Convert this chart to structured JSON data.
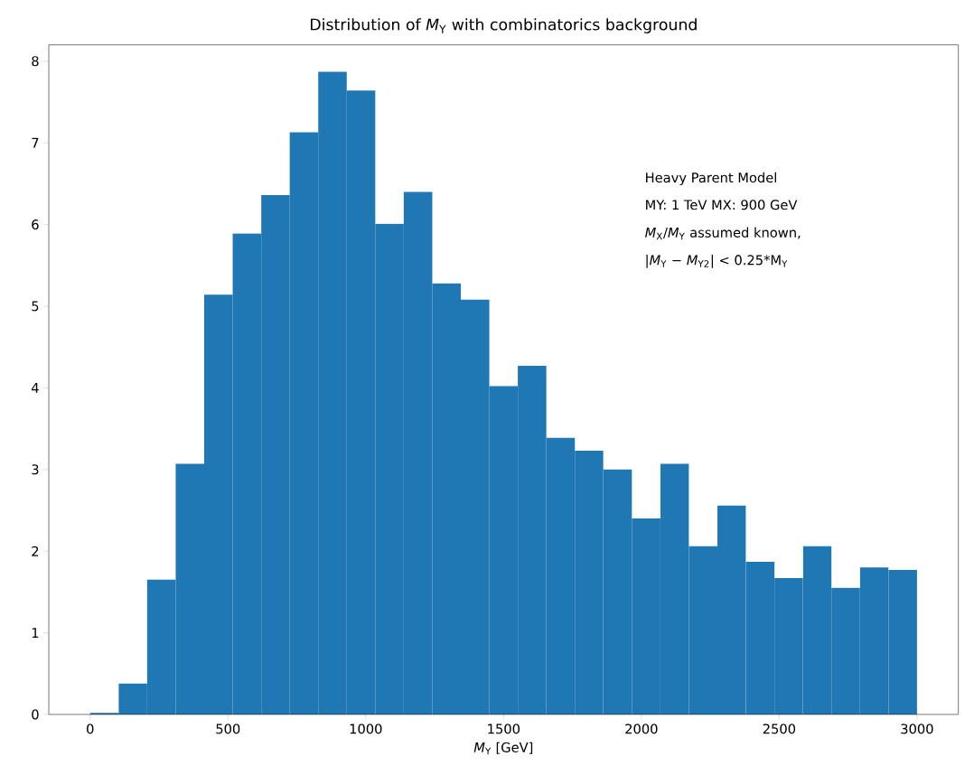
{
  "chart_data": {
    "type": "histogram",
    "title": "Distribution of *M*$_{Y}$ with combinatorics background",
    "xlabel": "*M*$_{Y}$ [GeV]",
    "bins": [
      0,
      103.4,
      206.9,
      310.3,
      413.8,
      517.2,
      620.7,
      724.1,
      827.6,
      931.0,
      1034.5,
      1137.9,
      1241.4,
      1344.8,
      1448.3,
      1551.7,
      1655.2,
      1758.6,
      1862.1,
      1965.5,
      2069.0,
      2172.4,
      2275.9,
      2379.3,
      2482.8,
      2586.2,
      2689.7,
      2793.1,
      2896.6,
      3000
    ],
    "values": [
      0.02,
      0.38,
      1.65,
      3.07,
      5.14,
      5.89,
      6.36,
      7.13,
      7.87,
      7.64,
      6.01,
      6.4,
      5.28,
      5.08,
      4.02,
      4.27,
      3.39,
      3.23,
      3.0,
      2.4,
      3.07,
      2.06,
      2.56,
      1.87,
      1.67,
      2.06,
      1.55,
      1.8,
      1.77
    ],
    "color": "#1f77b4",
    "xlim": [
      -150,
      3150
    ],
    "ylim": [
      0,
      8.2
    ],
    "xticks": [
      0,
      500,
      1000,
      1500,
      2000,
      2500,
      3000
    ],
    "yticks": [
      0,
      1,
      2,
      3,
      4,
      5,
      6,
      7,
      8
    ],
    "annotations": [
      "Heavy Parent Model",
      "MY: 1 TeV MX: 900 GeV",
      "*M*$_{X}$/*M*$_{Y}$ assumed known,",
      "|*M*$_{Y}$ − *M*$_{Y2}$| < 0.25*M$_{Y}$"
    ]
  }
}
